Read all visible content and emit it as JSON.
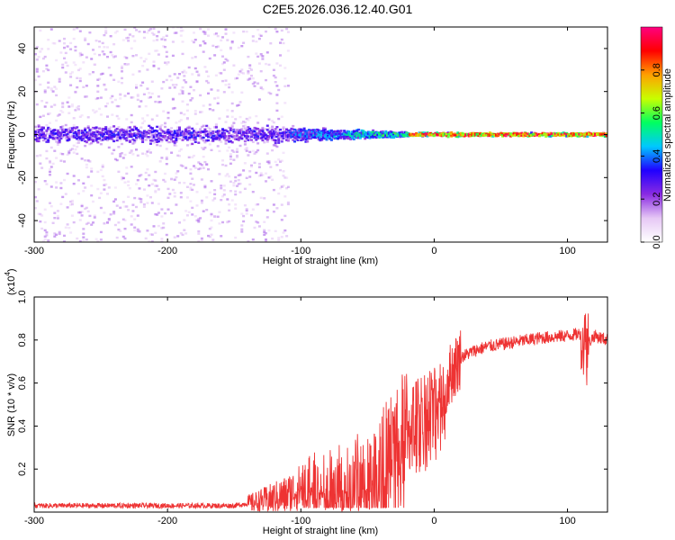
{
  "title": "C2E5.2026.036.12.40.G01",
  "chart_data": [
    {
      "type": "heatmap",
      "name": "spectrogram",
      "xlabel": "Height of straight line (km)",
      "ylabel": "Frequency (Hz)",
      "xlim": [
        -300,
        130
      ],
      "ylim": [
        -50,
        50
      ],
      "xticks": [
        -300,
        -200,
        -100,
        0,
        100
      ],
      "xtick_labels": [
        "-300",
        "-200",
        "-100",
        "0",
        "100"
      ],
      "yticks": [
        -40,
        -20,
        0,
        20,
        40
      ],
      "ytick_labels": [
        "-40",
        "-20",
        "0",
        "20",
        "40"
      ],
      "colorbar": {
        "label": "Normalized spectral amplitude",
        "range": [
          0,
          1
        ],
        "ticks": [
          0.0,
          0.2,
          0.4,
          0.6,
          0.8
        ],
        "tick_labels": [
          "0.0",
          "0.2",
          "0.4",
          "0.6",
          "0.8"
        ],
        "colors": [
          "#ffffff",
          "#e6c8f5",
          "#8a2be2",
          "#2000ff",
          "#00c8ff",
          "#00ff60",
          "#c8ff00",
          "#ffa000",
          "#ff0000",
          "#ff0080"
        ]
      },
      "features": [
        {
          "x_range": [
            -300,
            -110
          ],
          "freq_spread": [
            -50,
            50
          ],
          "core_band": [
            -8,
            8
          ],
          "amplitude": "low 0.1-0.3"
        },
        {
          "x_range": [
            -110,
            -20
          ],
          "freq_spread": [
            -8,
            8
          ],
          "core_band": [
            -3,
            3
          ],
          "amplitude": "medium 0.3-0.6"
        },
        {
          "x_range": [
            -20,
            130
          ],
          "freq_spread": [
            -3,
            3
          ],
          "core_band": [
            0,
            1
          ],
          "amplitude": "high 0.5-1.0"
        }
      ]
    },
    {
      "type": "line",
      "name": "snr",
      "xlabel": "Height of straight line (km)",
      "ylabel": "SNR (10 * v/v)",
      "scale_label": "(x10",
      "scale_exp": "4",
      "scale_close": ")",
      "xlim": [
        -300,
        130
      ],
      "ylim": [
        0,
        1.0
      ],
      "xticks": [
        -300,
        -200,
        -100,
        0,
        100
      ],
      "xtick_labels": [
        "-300",
        "-200",
        "-100",
        "0",
        "100"
      ],
      "yticks": [
        0.2,
        0.4,
        0.6,
        0.8,
        1.0
      ],
      "ytick_labels": [
        "0.2",
        "0.4",
        "0.6",
        "0.8",
        "1.0"
      ],
      "line_color": "#ee3333",
      "series": [
        {
          "name": "SNR",
          "x": [
            -300,
            -200,
            -150,
            -130,
            -110,
            -90,
            -70,
            -50,
            -40,
            -30,
            -20,
            -10,
            0,
            10,
            20,
            30,
            40,
            60,
            80,
            100,
            110,
            115,
            120,
            130
          ],
          "y": [
            0.03,
            0.03,
            0.03,
            0.05,
            0.08,
            0.15,
            0.15,
            0.2,
            0.25,
            0.35,
            0.45,
            0.5,
            0.55,
            0.62,
            0.72,
            0.75,
            0.77,
            0.79,
            0.81,
            0.82,
            0.83,
            0.78,
            0.82,
            0.8
          ]
        }
      ]
    }
  ]
}
